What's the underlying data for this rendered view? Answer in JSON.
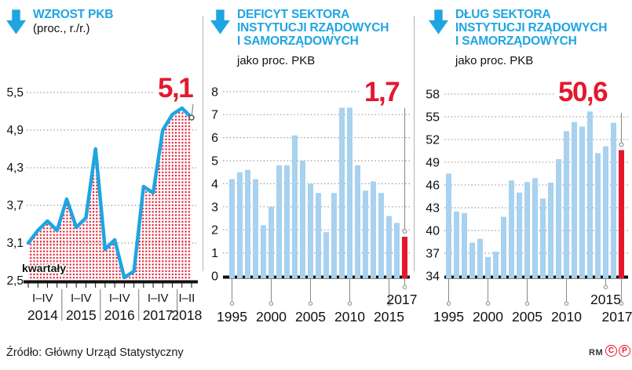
{
  "colors": {
    "accent_blue": "#1ea5e2",
    "bar_blue": "#a8d2ef",
    "highlight_red": "#e4182c",
    "grid_gray": "#9b9b9b",
    "axis_black": "#111111",
    "pointer_gray": "#8a8a8a",
    "divider_gray": "#b3b3b3"
  },
  "footer": {
    "source": "Źródło: Główny Urząd Statystyczny",
    "credit": "RM",
    "badges": [
      "C",
      "P"
    ]
  },
  "chart_data": [
    {
      "type": "line",
      "title_lines": [
        "WZROST PKB"
      ],
      "subtitle": "(proc., r./r.)",
      "highlight_label": "5,1",
      "highlight_value": 5.1,
      "inner_label": "kwartały",
      "x_groups": [
        {
          "range": "I–IV",
          "year": "2014",
          "count": 4
        },
        {
          "range": "I–IV",
          "year": "2015",
          "count": 4
        },
        {
          "range": "I–IV",
          "year": "2016",
          "count": 4
        },
        {
          "range": "I–IV",
          "year": "2017",
          "count": 4
        },
        {
          "range": "I–II",
          "year": "2018",
          "count": 2
        }
      ],
      "values": [
        3.1,
        3.3,
        3.45,
        3.3,
        3.8,
        3.35,
        3.5,
        4.6,
        3.0,
        3.15,
        2.55,
        2.65,
        4.0,
        3.9,
        4.9,
        5.15,
        5.25,
        5.1
      ],
      "ylim": [
        2.5,
        5.5
      ],
      "yticks": [
        {
          "label": "5,5",
          "value": 5.5
        },
        {
          "label": "4,9",
          "value": 4.9
        },
        {
          "label": "4,3",
          "value": 4.3
        },
        {
          "label": "3,7",
          "value": 3.7
        },
        {
          "label": "3,1",
          "value": 3.1
        },
        {
          "label": "2,5",
          "value": 2.5
        }
      ],
      "grid": true,
      "legend": "none",
      "area_fill": "red-dot-pattern"
    },
    {
      "type": "bar",
      "title_lines": [
        "DEFICYT SEKTORA",
        "INSTYTUCJI RZĄDOWYCH",
        "I SAMORZĄDOWYCH"
      ],
      "subtitle": "jako proc. PKB",
      "highlight_label": "1,7",
      "highlight_value": 1.7,
      "highlight_index": 22,
      "categories": [
        "1995",
        "1996",
        "1997",
        "1998",
        "1999",
        "2000",
        "2001",
        "2002",
        "2003",
        "2004",
        "2005",
        "2006",
        "2007",
        "2008",
        "2009",
        "2010",
        "2011",
        "2012",
        "2013",
        "2014",
        "2015",
        "2016",
        "2017"
      ],
      "values": [
        4.2,
        4.5,
        4.6,
        4.2,
        2.2,
        3.0,
        4.8,
        4.8,
        6.1,
        5.0,
        4.0,
        3.6,
        1.9,
        3.6,
        7.3,
        7.3,
        4.8,
        3.7,
        4.1,
        3.6,
        2.6,
        2.3,
        1.7
      ],
      "ylim": [
        0,
        8
      ],
      "yticks": [
        {
          "label": "8",
          "value": 8
        },
        {
          "label": "7",
          "value": 7
        },
        {
          "label": "6",
          "value": 6
        },
        {
          "label": "5",
          "value": 5
        },
        {
          "label": "4",
          "value": 4
        },
        {
          "label": "3",
          "value": 3
        },
        {
          "label": "2",
          "value": 2
        },
        {
          "label": "1",
          "value": 1
        },
        {
          "label": "0",
          "value": 0
        }
      ],
      "xticks": [
        {
          "label": "1995",
          "index": 0,
          "raised": false
        },
        {
          "label": "2000",
          "index": 5,
          "raised": false
        },
        {
          "label": "2005",
          "index": 10,
          "raised": false
        },
        {
          "label": "2010",
          "index": 15,
          "raised": false
        },
        {
          "label": "2015",
          "index": 20,
          "raised": false
        },
        {
          "label": "2017",
          "index": 22,
          "raised": true
        }
      ],
      "grid": true,
      "legend": "none"
    },
    {
      "type": "bar",
      "title_lines": [
        "DŁUG SEKTORA",
        "INSTYTUCJI RZĄDOWYCH",
        "I SAMORZĄDOWYCH"
      ],
      "subtitle": "jako proc. PKB",
      "highlight_label": "50,6",
      "highlight_value": 50.6,
      "highlight_index": 22,
      "categories": [
        "1995",
        "1996",
        "1997",
        "1998",
        "1999",
        "2000",
        "2001",
        "2002",
        "2003",
        "2004",
        "2005",
        "2006",
        "2007",
        "2008",
        "2009",
        "2010",
        "2011",
        "2012",
        "2013",
        "2014",
        "2015",
        "2016",
        "2017"
      ],
      "values": [
        47.5,
        42.5,
        42.3,
        38.4,
        38.9,
        36.5,
        37.2,
        41.8,
        46.6,
        45.0,
        46.4,
        46.9,
        44.2,
        46.3,
        49.4,
        53.1,
        54.3,
        53.7,
        55.7,
        50.2,
        51.1,
        54.2,
        50.6
      ],
      "ylim": [
        34,
        58
      ],
      "yticks": [
        {
          "label": "58",
          "value": 58
        },
        {
          "label": "55",
          "value": 55
        },
        {
          "label": "52",
          "value": 52
        },
        {
          "label": "49",
          "value": 49
        },
        {
          "label": "46",
          "value": 46
        },
        {
          "label": "43",
          "value": 43
        },
        {
          "label": "40",
          "value": 40
        },
        {
          "label": "37",
          "value": 37
        },
        {
          "label": "34",
          "value": 34
        }
      ],
      "xticks": [
        {
          "label": "1995",
          "index": 0,
          "raised": false
        },
        {
          "label": "2000",
          "index": 5,
          "raised": false
        },
        {
          "label": "2005",
          "index": 10,
          "raised": false
        },
        {
          "label": "2010",
          "index": 15,
          "raised": false
        },
        {
          "label": "2015",
          "index": 20,
          "raised": true
        },
        {
          "label": "2017",
          "index": 22,
          "raised": false
        }
      ],
      "grid": true,
      "legend": "none"
    }
  ]
}
